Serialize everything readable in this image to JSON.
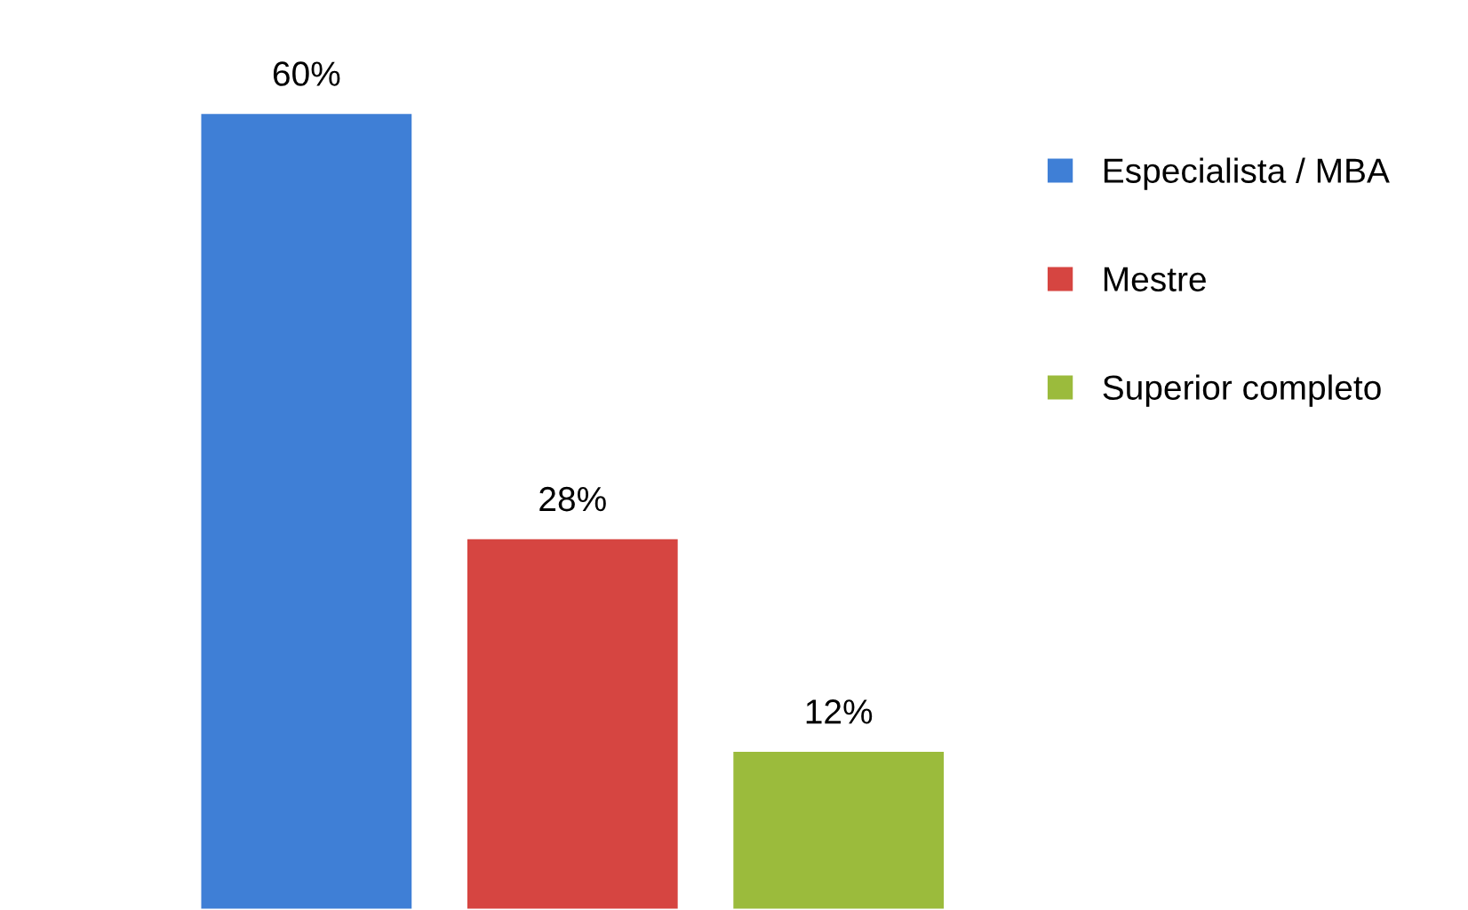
{
  "chart_data": {
    "type": "bar",
    "categories": [
      null,
      null,
      null
    ],
    "series": [
      {
        "name": "Especialista / MBA",
        "color": "#3f7fd6",
        "values": [
          60,
          null,
          null
        ],
        "value_labels": [
          "60%",
          null,
          null
        ]
      },
      {
        "name": "Mestre",
        "color": "#d64541",
        "values": [
          null,
          28,
          null
        ],
        "value_labels": [
          null,
          "28%",
          null
        ]
      },
      {
        "name": "Superior completo",
        "color": "#9bbb3c",
        "values": [
          null,
          null,
          12
        ],
        "value_labels": [
          null,
          null,
          "12%"
        ]
      }
    ],
    "stacked": true,
    "legend": "right",
    "grid": false,
    "tick_labels": false
  }
}
